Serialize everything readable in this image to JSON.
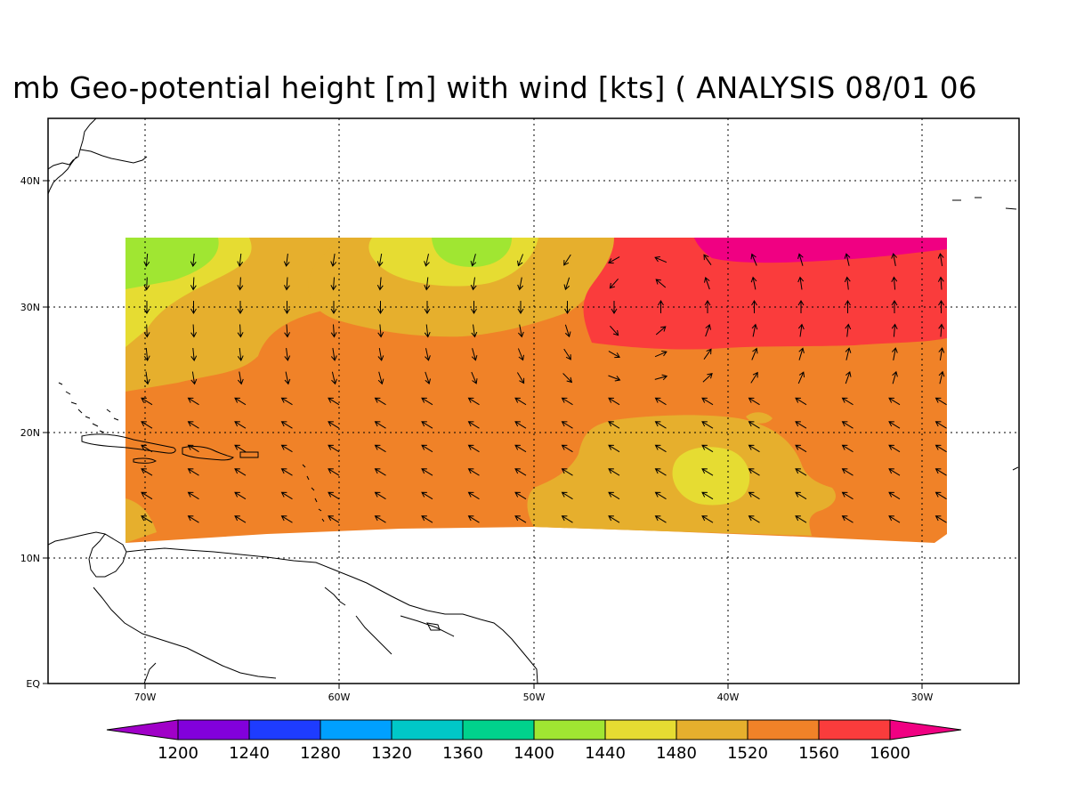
{
  "title": "mb Geo-potential height [m] with wind [kts] ( ANALYSIS 08/01 06",
  "map": {
    "lon_labels": [
      "70W",
      "60W",
      "50W",
      "40W",
      "30W"
    ],
    "lat_labels": [
      "40N",
      "30N",
      "20N",
      "10N",
      "EQ"
    ],
    "gridlines": "dotted"
  },
  "colorbar": {
    "labels": [
      "1200",
      "1240",
      "1280",
      "1320",
      "1360",
      "1400",
      "1440",
      "1480",
      "1520",
      "1560",
      "1600"
    ],
    "colors": [
      "#a000c8",
      "#8200dc",
      "#1e3cff",
      "#00a0ff",
      "#00c8c8",
      "#00d28c",
      "#a0e632",
      "#e6dc32",
      "#e6af2d",
      "#f08228",
      "#fa3c3c",
      "#f00082"
    ]
  },
  "colors": {
    "h1440": "#a0e632",
    "h1480": "#e6dc32",
    "h1520": "#e6af2d",
    "h1560": "#f08228",
    "h1600": "#fa3c3c",
    "h1640": "#f00082"
  }
}
